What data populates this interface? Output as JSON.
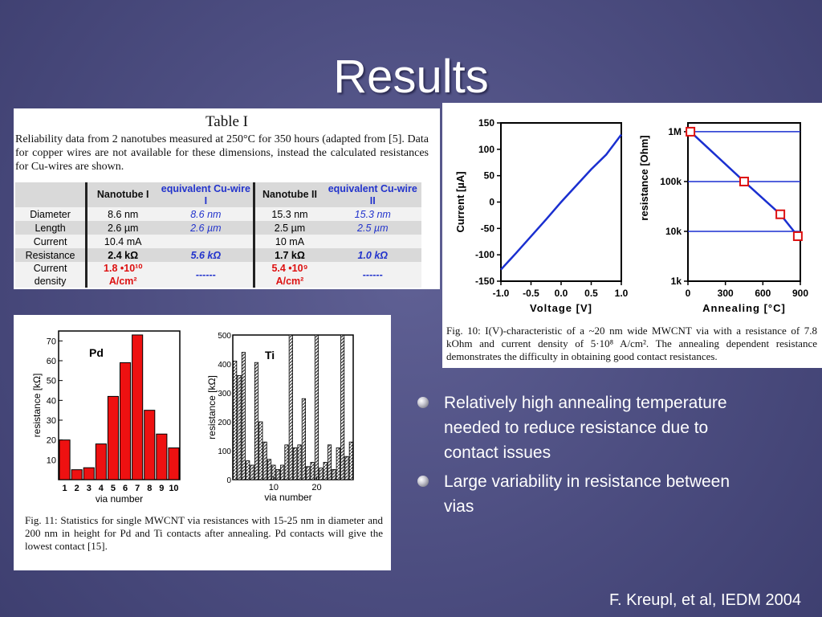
{
  "slide": {
    "title": "Results",
    "citation": "F. Kreupl, et al, IEDM 2004"
  },
  "table": {
    "caption": "Table I",
    "description": "Reliability data from 2 nanotubes measured at 250°C for 350 hours (adapted from [5]. Data for copper wires are not available for these dimensions, instead the calculated resistances for Cu-wires are shown.",
    "headers": {
      "nt1": "Nanotube I",
      "cu1": "equivalent Cu-wire I",
      "nt2": "Nanotube II",
      "cu2": "equivalent Cu-wire II"
    },
    "rows": [
      {
        "label": "Diameter",
        "nt1": "8.6 nm",
        "cu1": "8.6 nm",
        "nt2": "15.3 nm",
        "cu2": "15.3 nm"
      },
      {
        "label": "Length",
        "nt1": "2.6 µm",
        "cu1": "2.6 µm",
        "nt2": "2.5 µm",
        "cu2": "2.5 µm"
      },
      {
        "label": "Current",
        "nt1": "10.4 mA",
        "cu1": "",
        "nt2": "10 mA",
        "cu2": ""
      },
      {
        "label": "Resistance",
        "nt1": "2.4 kΩ",
        "cu1": "5.6 kΩ",
        "nt2": "1.7 kΩ",
        "cu2": "1.0 kΩ"
      },
      {
        "label": "Current density",
        "nt1": "1.8 •10¹⁰ A/cm²",
        "cu1": "------",
        "nt2": "5.4 •10⁹ A/cm²",
        "cu2": "------"
      }
    ]
  },
  "fig10": {
    "caption": "Fig. 10: I(V)-characteristic of a ~20 nm wide MWCNT via with a resistance of 7.8 kOhm and current density of 5·10⁸ A/cm². The annealing dependent resistance demonstrates the difficulty in obtaining good contact resistances."
  },
  "fig11": {
    "caption": "Fig. 11: Statistics for single MWCNT via resistances with 15-25 nm in diameter and 200 nm in height for Pd and Ti contacts after annealing. Pd contacts will give the lowest contact [15]."
  },
  "bullets": [
    "Relatively high annealing temperature needed to reduce resistance due to contact issues",
    "Large variability in resistance between vias"
  ],
  "chart_data": [
    {
      "type": "line",
      "xlabel": "Voltage [V]",
      "ylabel": "Current [µA]",
      "xlim": [
        -1.0,
        1.0
      ],
      "ylim": [
        -150,
        150
      ],
      "x_ticks": [
        "-1.0",
        "-0.5",
        "0.0",
        "0.5",
        "1.0"
      ],
      "y_ticks": [
        "150",
        "100",
        "50",
        "0",
        "-50",
        "-100",
        "-150"
      ],
      "series": [
        {
          "x": [
            -1.0,
            -0.75,
            -0.5,
            -0.25,
            0.0,
            0.25,
            0.5,
            0.75,
            1.0
          ],
          "y": [
            -128,
            -97,
            -65,
            -33,
            0,
            31,
            62,
            90,
            128
          ]
        }
      ],
      "color": "#1a2fd0"
    },
    {
      "type": "scatter",
      "xlabel": "Annealing [°C]",
      "ylabel": "resistance [Ohm]",
      "xlim": [
        0,
        900
      ],
      "ylim": [
        1000,
        1500000
      ],
      "yscale": "log",
      "x_ticks": [
        "0",
        "300",
        "600",
        "900"
      ],
      "y_ticks": [
        "1M",
        "100k",
        "10k",
        "1k"
      ],
      "points": [
        {
          "x": 20,
          "y": 1000000
        },
        {
          "x": 450,
          "y": 100000
        },
        {
          "x": 740,
          "y": 22000
        },
        {
          "x": 880,
          "y": 8000
        }
      ],
      "hlines": [
        1000000,
        100000,
        10000
      ],
      "color": "#1a2fd0",
      "marker_color": "#dd1111"
    },
    {
      "type": "bar",
      "label": "Pd",
      "xlabel": "via number",
      "ylabel": "resistance [kΩ]",
      "ylim": [
        0,
        75
      ],
      "categories": [
        "1",
        "2",
        "3",
        "4",
        "5",
        "6",
        "7",
        "8",
        "9",
        "10"
      ],
      "y_ticks": [
        "10",
        "20",
        "30",
        "40",
        "50",
        "60",
        "70"
      ],
      "values": [
        20,
        5,
        6,
        18,
        42,
        59,
        73,
        35,
        23,
        16
      ],
      "color": "#ee1111"
    },
    {
      "type": "bar",
      "label": "Ti",
      "xlabel": "via number",
      "ylabel": "resistance [kΩ]",
      "ylim": [
        0,
        500
      ],
      "x_ticks": [
        "10",
        "20"
      ],
      "y_ticks": [
        "0",
        "100",
        "200",
        "300",
        "400",
        "500"
      ],
      "values": [
        410,
        360,
        440,
        65,
        50,
        405,
        200,
        130,
        70,
        50,
        35,
        50,
        120,
        500,
        110,
        120,
        280,
        45,
        60,
        500,
        40,
        60,
        120,
        35,
        110,
        500,
        80,
        130
      ],
      "color": "#444444"
    }
  ]
}
